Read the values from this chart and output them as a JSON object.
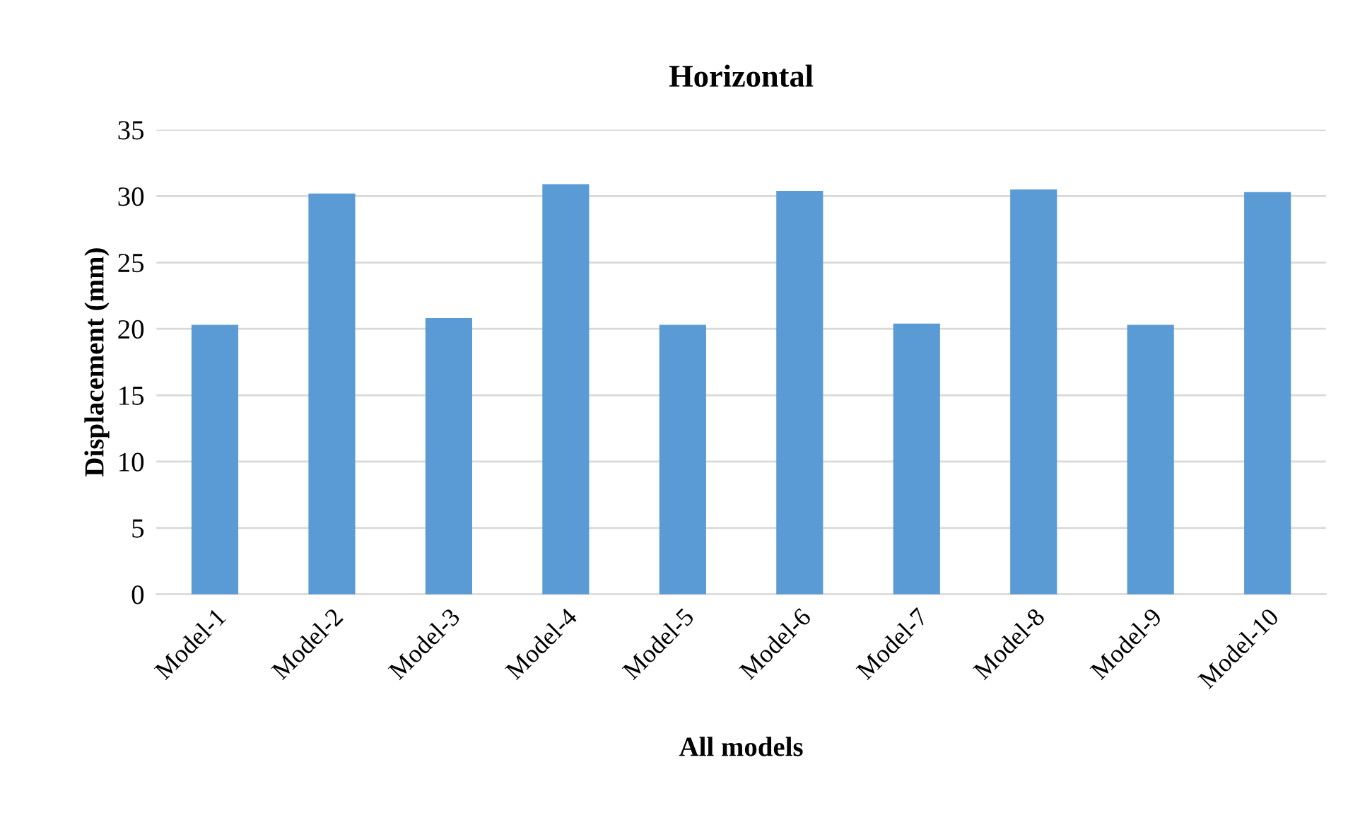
{
  "chart_data": {
    "type": "bar",
    "title": "Horizontal",
    "xlabel": "All models",
    "ylabel": "Displacement (mm)",
    "categories": [
      "Model-1",
      "Model-2",
      "Model-3",
      "Model-4",
      "Model-5",
      "Model-6",
      "Model-7",
      "Model-8",
      "Model-9",
      "Model-10"
    ],
    "values": [
      20.3,
      30.2,
      20.8,
      30.9,
      20.3,
      30.4,
      20.4,
      30.5,
      20.3,
      30.3
    ],
    "color": "#5b9bd5",
    "ylim": [
      0,
      35
    ],
    "yticks": [
      0,
      5,
      10,
      15,
      20,
      25,
      30,
      35
    ],
    "grid": "y"
  }
}
